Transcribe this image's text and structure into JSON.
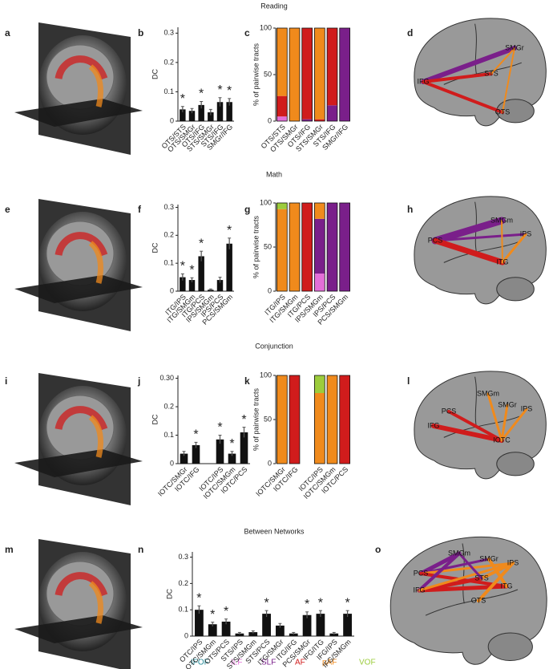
{
  "figure": {
    "row_titles": [
      "Reading",
      "Math",
      "Conjunction",
      "Between Networks"
    ],
    "panel_letters": [
      "a",
      "b",
      "c",
      "d",
      "e",
      "f",
      "g",
      "h",
      "i",
      "j",
      "k",
      "l",
      "m",
      "n",
      "o"
    ],
    "legend": [
      {
        "name": "IFOF",
        "color": "#2a8c9a"
      },
      {
        "name": "ILF",
        "color": "#e36fd8"
      },
      {
        "name": "SLF",
        "color": "#7a1f8a"
      },
      {
        "name": "AF",
        "color": "#d01c1c"
      },
      {
        "name": "pAF",
        "color": "#f08a1c"
      },
      {
        "name": "VOF",
        "color": "#9ccc3c"
      }
    ]
  },
  "diagrams": [
    {
      "labels": [
        "SMGr",
        "IFG",
        "STS",
        "OTS"
      ]
    },
    {
      "labels": [
        "SMGm",
        "PCS",
        "IPS",
        "ITG"
      ]
    },
    {
      "labels": [
        "PCS",
        "SMGm",
        "SMGr",
        "IPS",
        "IFG",
        "IOTC"
      ]
    },
    {
      "labels": [
        "SMGm",
        "PCS",
        "SMGr",
        "IPS",
        "IFG",
        "STS",
        "ITG",
        "OTS"
      ]
    }
  ],
  "chart_data": [
    {
      "type": "bar",
      "ylabel": "DC",
      "color": "#111111",
      "categories": [
        "OTS/STS",
        "OTS/SMGr",
        "OTS/IFG",
        "STS/SMGr",
        "STS/IFG",
        "SMGr/IFG"
      ],
      "values": [
        0.04,
        0.035,
        0.055,
        0.03,
        0.065,
        0.065
      ],
      "errors": [
        0.01,
        0.008,
        0.012,
        0.01,
        0.015,
        0.012
      ],
      "stars": [
        "*",
        null,
        "*",
        null,
        "*",
        "*"
      ],
      "ylim": [
        0,
        0.32
      ],
      "yticks": [
        0,
        0.1,
        0.2,
        0.3
      ]
    },
    {
      "type": "stacked_bar",
      "ylabel": "% of pairwise tracts",
      "categories": [
        "OTS/STS",
        "OTS/SMGr",
        "OTS/IFG",
        "STS/SMGr",
        "STS/IFG",
        "SMGr/IFG"
      ],
      "series": [
        {
          "name": "IFOF",
          "color": "#2a8c9a",
          "values": [
            0,
            0,
            0,
            0,
            0,
            0
          ]
        },
        {
          "name": "ILF",
          "color": "#e36fd8",
          "values": [
            5,
            0,
            0,
            0,
            0,
            0
          ]
        },
        {
          "name": "SLF",
          "color": "#7a1f8a",
          "values": [
            0,
            0,
            2,
            0,
            17,
            100
          ]
        },
        {
          "name": "AF",
          "color": "#d01c1c",
          "values": [
            22,
            0,
            98,
            2,
            83,
            0
          ]
        },
        {
          "name": "pAF",
          "color": "#f08a1c",
          "values": [
            73,
            100,
            0,
            98,
            0,
            0
          ]
        },
        {
          "name": "VOF",
          "color": "#9ccc3c",
          "values": [
            0,
            0,
            0,
            0,
            0,
            0
          ]
        }
      ],
      "ylim": [
        0,
        100
      ],
      "yticks": [
        0,
        50,
        100
      ]
    },
    {
      "type": "bar",
      "ylabel": "DC",
      "color": "#111111",
      "categories": [
        "ITG/IPS",
        "ITG/SMGm",
        "ITG/PCS",
        "IPS/SMGm",
        "IPS/PCS",
        "PCS/SMGm"
      ],
      "values": [
        0.05,
        0.04,
        0.125,
        0.005,
        0.04,
        0.17
      ],
      "errors": [
        0.012,
        0.008,
        0.018,
        0.003,
        0.01,
        0.02
      ],
      "stars": [
        "*",
        "*",
        "*",
        null,
        null,
        "*"
      ],
      "ylim": [
        0,
        0.31
      ],
      "yticks": [
        0,
        0.1,
        0.2,
        0.3
      ]
    },
    {
      "type": "stacked_bar",
      "ylabel": "% of pairwise tracts",
      "categories": [
        "ITG/IPS",
        "ITG/SMGm",
        "ITG/PCS",
        "IPS/SMGm",
        "IPS/PCS",
        "PCS/SMGm"
      ],
      "series": [
        {
          "name": "IFOF",
          "color": "#2a8c9a",
          "values": [
            0,
            0,
            0,
            0,
            0,
            0
          ]
        },
        {
          "name": "ILF",
          "color": "#e36fd8",
          "values": [
            0,
            0,
            0,
            20,
            0,
            0
          ]
        },
        {
          "name": "SLF",
          "color": "#7a1f8a",
          "values": [
            0,
            0,
            0,
            62,
            100,
            100
          ]
        },
        {
          "name": "AF",
          "color": "#d01c1c",
          "values": [
            0,
            0,
            100,
            0,
            0,
            0
          ]
        },
        {
          "name": "pAF",
          "color": "#f08a1c",
          "values": [
            93,
            100,
            0,
            18,
            0,
            0
          ]
        },
        {
          "name": "VOF",
          "color": "#9ccc3c",
          "values": [
            7,
            0,
            0,
            0,
            0,
            0
          ]
        }
      ],
      "ylim": [
        0,
        100
      ],
      "yticks": [
        0,
        50,
        100
      ]
    },
    {
      "type": "bar",
      "ylabel": "DC",
      "color": "#111111",
      "categories": [
        "IOTC/SMGr",
        "IOTC/IFG",
        null,
        "IOTC/IPS",
        "IOTC/SMGm",
        "IOTC/PCS"
      ],
      "values": [
        0.035,
        0.065,
        null,
        0.085,
        0.035,
        0.11
      ],
      "errors": [
        0.008,
        0.01,
        null,
        0.015,
        0.008,
        0.018
      ],
      "stars": [
        null,
        "*",
        null,
        "*",
        "*",
        "*"
      ],
      "ylim": [
        0,
        0.31
      ],
      "yticks": [
        0,
        0.1,
        0.2,
        {
          "value": 0.3,
          "label": "0.30"
        }
      ]
    },
    {
      "type": "stacked_bar",
      "ylabel": "% of pairwise tracts",
      "categories": [
        "IOTC/SMGr",
        "IOTC/IFG",
        null,
        "IOTC/IPS",
        "IOTC/SMGm",
        "IOTC/PCS"
      ],
      "series": [
        {
          "name": "IFOF",
          "color": "#2a8c9a",
          "values": [
            0,
            0,
            null,
            0,
            0,
            0
          ]
        },
        {
          "name": "ILF",
          "color": "#e36fd8",
          "values": [
            0,
            0,
            null,
            0,
            0,
            0
          ]
        },
        {
          "name": "SLF",
          "color": "#7a1f8a",
          "values": [
            0,
            0,
            null,
            0,
            0,
            0
          ]
        },
        {
          "name": "AF",
          "color": "#d01c1c",
          "values": [
            0,
            100,
            null,
            0,
            0,
            100
          ]
        },
        {
          "name": "pAF",
          "color": "#f08a1c",
          "values": [
            100,
            0,
            null,
            80,
            100,
            0
          ]
        },
        {
          "name": "VOF",
          "color": "#9ccc3c",
          "values": [
            0,
            0,
            null,
            20,
            0,
            0
          ]
        }
      ],
      "ylim": [
        0,
        100
      ],
      "yticks": [
        0,
        50,
        100
      ]
    },
    {
      "type": "bar",
      "ylabel": "DC",
      "color": "#111111",
      "categories": [
        "OTC/IPS",
        "OTC/SMGm",
        "OTS/PCS",
        "STS/IPS",
        "STS/SMGm",
        "STS/PCS",
        "ITG/SMGr",
        "ITG/IFG",
        "PCS/SMGr",
        "IFG/ITG",
        "IFG/IPS",
        "IFG/SMGm"
      ],
      "values": [
        0.1,
        0.045,
        0.055,
        0.01,
        0.015,
        0.085,
        0.04,
        0.01,
        0.08,
        0.085,
        0.01,
        0.085
      ],
      "errors": [
        0.015,
        0.008,
        0.01,
        0.004,
        0.005,
        0.012,
        0.008,
        0.004,
        0.012,
        0.012,
        0.004,
        0.012
      ],
      "stars": [
        "*",
        "*",
        "*",
        null,
        null,
        "*",
        null,
        null,
        "*",
        "*",
        null,
        "*"
      ],
      "ylim": [
        0,
        0.32
      ],
      "yticks": [
        0,
        0.1,
        0.2,
        0.3
      ]
    }
  ]
}
